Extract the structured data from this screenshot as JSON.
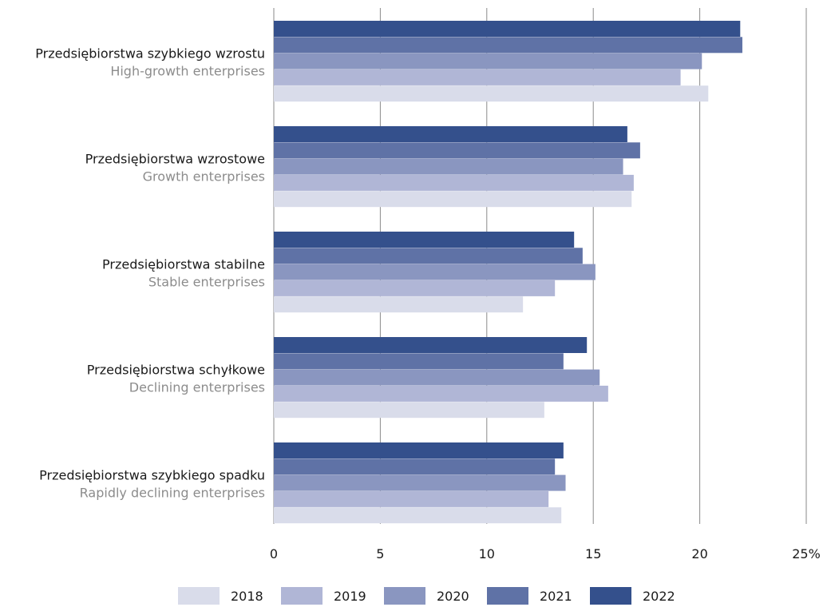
{
  "chart_data": {
    "type": "bar",
    "orientation": "horizontal",
    "categories": [
      {
        "label_pl": "Przedsiębiorstwa szybkiego wzrostu",
        "label_en": "High-growth enterprises"
      },
      {
        "label_pl": "Przedsiębiorstwa wzrostowe",
        "label_en": "Growth enterprises"
      },
      {
        "label_pl": "Przedsiębiorstwa stabilne",
        "label_en": "Stable enterprises"
      },
      {
        "label_pl": "Przedsiębiorstwa schyłkowe",
        "label_en": "Declining enterprises"
      },
      {
        "label_pl": "Przedsiębiorstwa szybkiego spadku",
        "label_en": "Rapidly declining enterprises"
      }
    ],
    "series": [
      {
        "name": "2022",
        "color": "#34508c",
        "values": [
          21.9,
          16.6,
          14.1,
          14.7,
          13.6
        ]
      },
      {
        "name": "2021",
        "color": "#5f72a6",
        "values": [
          22.0,
          17.2,
          14.5,
          13.6,
          13.2
        ]
      },
      {
        "name": "2020",
        "color": "#8a96c0",
        "values": [
          20.1,
          16.4,
          15.1,
          15.3,
          13.7
        ]
      },
      {
        "name": "2019",
        "color": "#b0b6d6",
        "values": [
          19.1,
          16.9,
          13.2,
          15.7,
          12.9
        ]
      },
      {
        "name": "2018",
        "color": "#d9dcea",
        "values": [
          20.4,
          16.8,
          11.7,
          12.7,
          13.5
        ]
      }
    ],
    "x_ticks": [
      "0",
      "5",
      "10",
      "15",
      "20",
      "25%"
    ],
    "xlim": [
      0,
      25
    ],
    "grid": "vertical",
    "legend": {
      "position": "bottom",
      "order": [
        "2018",
        "2019",
        "2020",
        "2021",
        "2022"
      ]
    },
    "title": "",
    "xlabel": "",
    "ylabel": ""
  }
}
